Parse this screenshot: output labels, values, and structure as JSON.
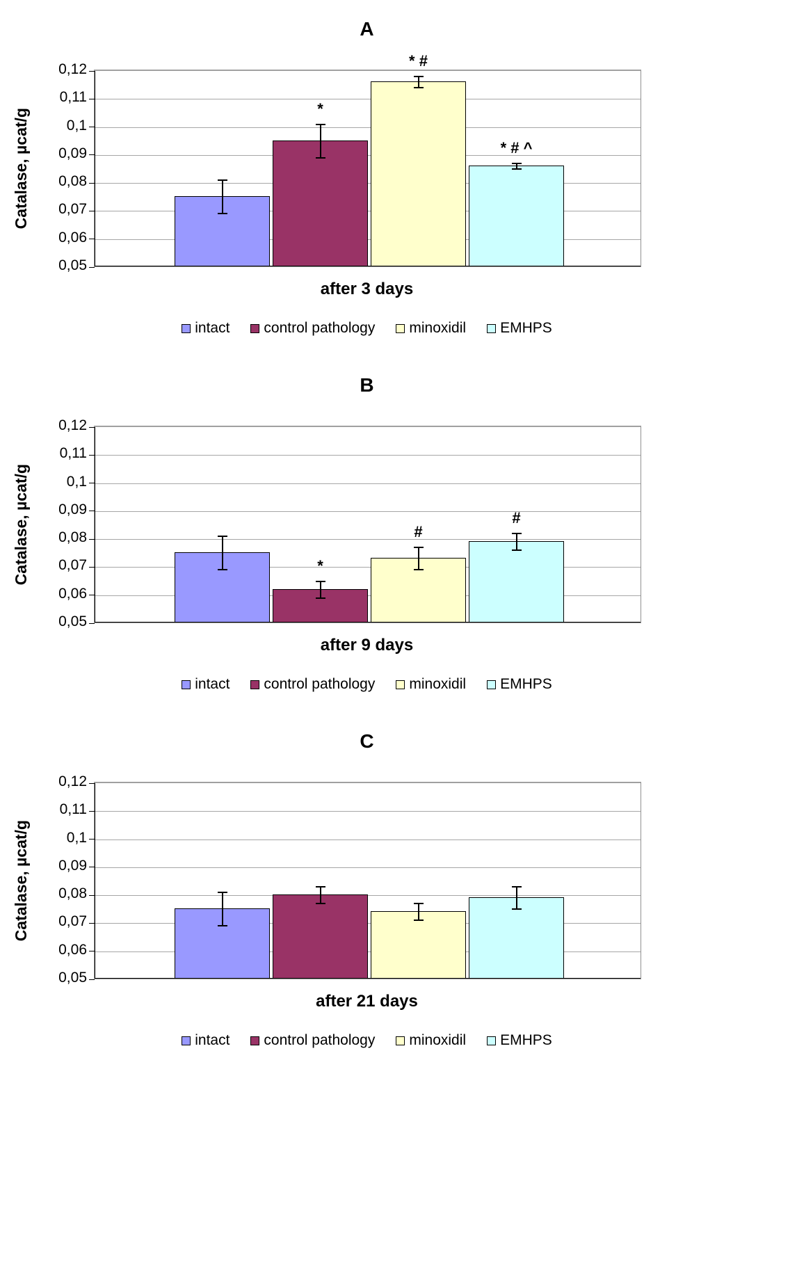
{
  "figure": {
    "ylabel": "Catalase, µcat/g",
    "series_colors": {
      "intact": "#9999FF",
      "control pathology": "#993366",
      "minoxidil": "#FFFFCC",
      "EMHPS": "#CCFFFF"
    }
  },
  "chart_data": [
    {
      "type": "bar",
      "title": "A",
      "xlabel": "after 3 days",
      "ylabel": "Catalase, µcat/g",
      "ylim": [
        0.05,
        0.12
      ],
      "ytick_step": 0.01,
      "decimal_separator": ",",
      "grid": true,
      "legend_position": "bottom",
      "categories": [
        "intact",
        "control pathology",
        "minoxidil",
        "EMHPS"
      ],
      "values": [
        0.075,
        0.095,
        0.116,
        0.086
      ],
      "errors": [
        0.006,
        0.006,
        0.002,
        0.001
      ],
      "annotations": [
        "",
        "*",
        "* #",
        "* # ^"
      ],
      "bar_colors": [
        "#9999FF",
        "#993366",
        "#FFFFCC",
        "#CCFFFF"
      ]
    },
    {
      "type": "bar",
      "title": "B",
      "xlabel": "after 9 days",
      "ylabel": "Catalase, µcat/g",
      "ylim": [
        0.05,
        0.12
      ],
      "ytick_step": 0.01,
      "decimal_separator": ",",
      "grid": true,
      "legend_position": "bottom",
      "categories": [
        "intact",
        "control pathology",
        "minoxidil",
        "EMHPS"
      ],
      "values": [
        0.075,
        0.062,
        0.073,
        0.079
      ],
      "errors": [
        0.006,
        0.003,
        0.004,
        0.003
      ],
      "annotations": [
        "",
        "*",
        "#",
        "#"
      ],
      "bar_colors": [
        "#9999FF",
        "#993366",
        "#FFFFCC",
        "#CCFFFF"
      ]
    },
    {
      "type": "bar",
      "title": "C",
      "xlabel": "after 21 days",
      "ylabel": "Catalase, µcat/g",
      "ylim": [
        0.05,
        0.12
      ],
      "ytick_step": 0.01,
      "decimal_separator": ",",
      "grid": true,
      "legend_position": "bottom",
      "categories": [
        "intact",
        "control pathology",
        "minoxidil",
        "EMHPS"
      ],
      "values": [
        0.075,
        0.08,
        0.074,
        0.079
      ],
      "errors": [
        0.006,
        0.003,
        0.003,
        0.004
      ],
      "annotations": [
        "",
        "",
        "",
        ""
      ],
      "bar_colors": [
        "#9999FF",
        "#993366",
        "#FFFFCC",
        "#CCFFFF"
      ]
    }
  ]
}
